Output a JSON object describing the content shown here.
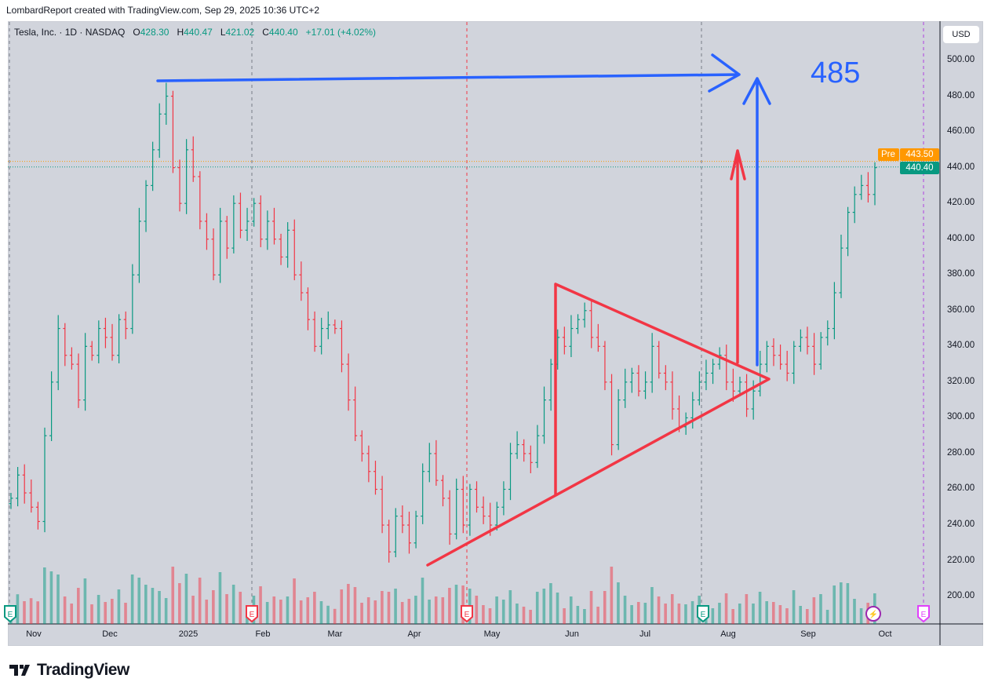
{
  "credit": "LombardReport created with TradingView.com, Sep 29, 2025 10:36 UTC+2",
  "legend": {
    "symbol": "Tesla, Inc. · 1D · NASDAQ",
    "o_label": "O",
    "o": "428.30",
    "h_label": "H",
    "h": "440.47",
    "l_label": "L",
    "l": "421.02",
    "c_label": "C",
    "c": "440.40",
    "change": "+17.01 (+4.02%)"
  },
  "currency": "USD",
  "pre_label": "Pre",
  "pre_price": "443.50",
  "last_price": "440.40",
  "annotation": "485",
  "logo": "TradingView",
  "colors": {
    "up": "#089981",
    "down": "#f23645",
    "draw_blue": "#2962ff",
    "draw_red": "#f23645",
    "pre": "#ff9800"
  },
  "chart_data": {
    "type": "ohlc",
    "title": "Tesla, Inc. · 1D · NASDAQ",
    "ylim": [
      190,
      510
    ],
    "y_ticks": [
      "500.00",
      "480.00",
      "460.00",
      "440.00",
      "420.00",
      "400.00",
      "380.00",
      "360.00",
      "340.00",
      "320.00",
      "300.00",
      "280.00",
      "260.00",
      "240.00",
      "220.00",
      "200.00"
    ],
    "x_ticks": [
      "Nov",
      "Dec",
      "2025",
      "Feb",
      "Mar",
      "Apr",
      "May",
      "Jun",
      "Jul",
      "Aug",
      "Sep",
      "Oct"
    ],
    "closes": [
      255,
      268,
      258,
      250,
      242,
      290,
      320,
      350,
      335,
      330,
      310,
      340,
      335,
      350,
      345,
      335,
      355,
      350,
      380,
      410,
      430,
      450,
      470,
      480,
      440,
      420,
      450,
      435,
      410,
      400,
      380,
      410,
      395,
      420,
      405,
      410,
      420,
      400,
      410,
      400,
      390,
      405,
      380,
      370,
      355,
      340,
      350,
      352,
      350,
      330,
      310,
      290,
      280,
      270,
      260,
      240,
      225,
      245,
      240,
      230,
      245,
      270,
      280,
      265,
      255,
      235,
      260,
      240,
      260,
      250,
      245,
      240,
      250,
      260,
      280,
      285,
      280,
      275,
      290,
      310,
      330,
      345,
      340,
      350,
      355,
      360,
      345,
      340,
      320,
      285,
      310,
      320,
      325,
      315,
      320,
      340,
      325,
      320,
      305,
      295,
      300,
      310,
      320,
      325,
      330,
      335,
      320,
      315,
      320,
      305,
      315,
      330,
      340,
      335,
      330,
      325,
      340,
      345,
      340,
      330,
      345,
      350,
      370,
      395,
      415,
      425,
      430,
      425,
      440
    ],
    "events": [
      {
        "type": "earnings",
        "label": "E"
      },
      {
        "type": "earnings",
        "label": "E"
      },
      {
        "type": "earnings",
        "label": "E"
      },
      {
        "type": "earnings",
        "label": "E"
      },
      {
        "type": "dividend-split",
        "label": "⚡"
      },
      {
        "type": "earnings",
        "label": "E"
      }
    ]
  }
}
